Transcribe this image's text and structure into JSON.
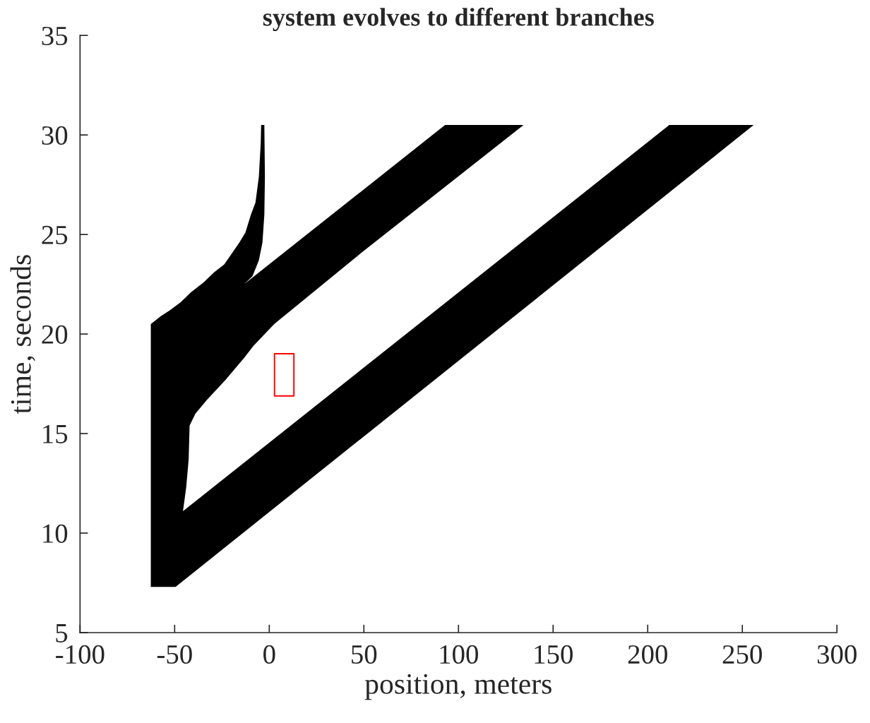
{
  "chart_data": {
    "type": "area",
    "title": "system evolves to different branches",
    "xlabel": "position, meters",
    "ylabel": "time, seconds",
    "xlim": [
      -100,
      300
    ],
    "ylim": [
      5,
      35
    ],
    "xticks": [
      -100,
      -50,
      0,
      50,
      100,
      150,
      200,
      250,
      300
    ],
    "yticks": [
      5,
      10,
      15,
      20,
      25,
      30,
      35
    ],
    "series": [
      {
        "color": "#000000",
        "x": [
          -62.6,
          -62.6,
          -57.3,
          -52.4,
          -46.8,
          -41.4,
          -34.6,
          -29.2,
          -23.8,
          -19.4,
          -15.8,
          -12.6,
          -9.7,
          -7.3,
          -5.5,
          -4.5,
          -4.3,
          -2.6,
          -2.3,
          -2.6,
          -3.6,
          -5.5,
          -8.9,
          -13.3,
          92.9,
          134.4,
          48.9,
          2.6,
          -8.4,
          -13.3,
          -23.1,
          -32.9,
          -39.0,
          -42.1,
          -42.6,
          -43.9,
          -45.6,
          211.4,
          256,
          -49.5
        ],
        "values": [
          7.3,
          20.5,
          20.9,
          21.2,
          21.6,
          22.1,
          22.6,
          23.1,
          23.5,
          24.1,
          24.6,
          25.1,
          26.0,
          26.6,
          27.9,
          29.6,
          30.5,
          30.5,
          27.9,
          26.0,
          24.6,
          23.7,
          22.9,
          22.5,
          30.5,
          30.5,
          24.1,
          20.5,
          19.4,
          18.8,
          17.7,
          16.7,
          16.0,
          15.4,
          13.7,
          12.3,
          11.1,
          30.5,
          30.5,
          7.3
        ]
      },
      {
        "type": "scatter",
        "color": "#ff0000",
        "marker": "square",
        "x": [
          7.9
        ],
        "values": [
          17.95
        ]
      }
    ]
  }
}
